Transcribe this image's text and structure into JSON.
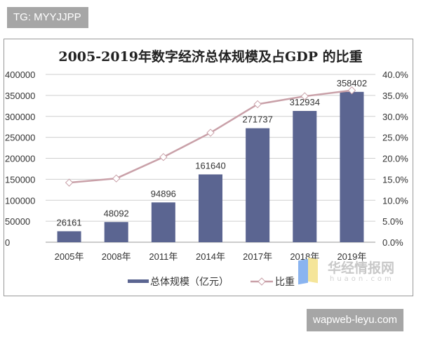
{
  "watermark_top": "TG: MYYJJPP",
  "watermark_bottom": "wapweb-leyu.com",
  "logo": {
    "name": "华经情报网",
    "domain": "huaon.com"
  },
  "chart_data": {
    "type": "bar+line",
    "title": "2005-2019年数字经济总体规模及占GDP 的比重",
    "categories": [
      "2005年",
      "2008年",
      "2011年",
      "2014年",
      "2017年",
      "2018年",
      "2019年"
    ],
    "series": [
      {
        "name": "总体规模（亿元）",
        "type": "bar",
        "axis": "left",
        "color": "#5b6591",
        "values": [
          26161,
          48092,
          94896,
          161640,
          271737,
          312934,
          358402
        ],
        "data_labels": [
          "26161",
          "48092",
          "94896",
          "161640",
          "271737",
          "312934",
          "358402"
        ]
      },
      {
        "name": "比重",
        "type": "line",
        "axis": "right",
        "color": "#c9a0a8",
        "marker": "diamond-open",
        "values": [
          14.2,
          15.2,
          20.3,
          26.1,
          32.9,
          34.8,
          36.2
        ]
      }
    ],
    "y_left": {
      "range": [
        0,
        400000
      ],
      "ticks": [
        "0",
        "50000",
        "100000",
        "150000",
        "200000",
        "250000",
        "300000",
        "350000",
        "400000"
      ]
    },
    "y_right": {
      "range": [
        0,
        40
      ],
      "ticks": [
        "0.0%",
        "5.0%",
        "10.0%",
        "15.0%",
        "20.0%",
        "25.0%",
        "30.0%",
        "35.0%",
        "40.0%"
      ]
    },
    "grid": true,
    "legend": "bottom"
  }
}
